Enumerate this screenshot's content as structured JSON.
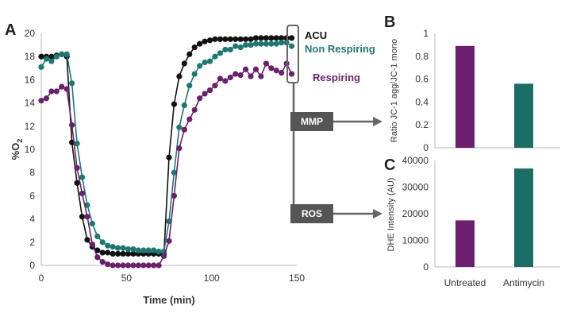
{
  "colors": {
    "acu": "#111111",
    "non_respiring": "#1a7a72",
    "respiring": "#6b1f6e",
    "untreated": "#6b1f6e",
    "antimycin": "#1a6e66",
    "flow_box": "#555555"
  },
  "flow": {
    "mmp": "MMP",
    "ros": "ROS"
  },
  "chart_data": [
    {
      "panel": "A",
      "type": "scatter",
      "xlabel": "Time (min)",
      "ylabel": "%O",
      "ylabel_sub": "2",
      "xlim": [
        0,
        150
      ],
      "ylim": [
        0,
        20
      ],
      "xticks": [
        0,
        50,
        100,
        150
      ],
      "yticks": [
        0,
        2,
        4,
        6,
        8,
        10,
        12,
        14,
        16,
        18,
        20
      ],
      "legend_position": "right",
      "series": [
        {
          "name": "ACU",
          "color_key": "acu",
          "x": [
            0,
            3,
            6,
            9,
            12,
            15,
            18,
            21,
            24,
            27,
            30,
            33,
            36,
            39,
            42,
            45,
            48,
            51,
            54,
            57,
            60,
            63,
            66,
            69,
            72,
            75,
            78,
            81,
            84,
            87,
            90,
            93,
            96,
            99,
            102,
            105,
            108,
            111,
            114,
            117,
            120,
            123,
            126,
            129,
            132,
            135,
            138,
            141,
            144,
            147
          ],
          "y": [
            18,
            18,
            18,
            18.1,
            18.2,
            18,
            10.6,
            7.1,
            4.2,
            2.2,
            1.6,
            1.3,
            1.1,
            1.1,
            1,
            1,
            1,
            1,
            1,
            1,
            1,
            1,
            1,
            1,
            1,
            9.3,
            13.9,
            16.3,
            17.4,
            18.2,
            18.8,
            19.1,
            19.3,
            19.4,
            19.5,
            19.5,
            19.5,
            19.5,
            19.5,
            19.5,
            19.5,
            19.5,
            19.6,
            19.6,
            19.6,
            19.6,
            19.6,
            19.6,
            19.6,
            19.6
          ]
        },
        {
          "name": "Non Respiring",
          "color_key": "non_respiring",
          "x": [
            0,
            3,
            6,
            9,
            12,
            15,
            18,
            21,
            24,
            27,
            30,
            33,
            36,
            39,
            42,
            45,
            48,
            51,
            54,
            57,
            60,
            63,
            66,
            69,
            72,
            75,
            78,
            81,
            84,
            87,
            90,
            93,
            96,
            99,
            102,
            105,
            108,
            111,
            114,
            117,
            120,
            123,
            126,
            129,
            132,
            135,
            138,
            141,
            144,
            147
          ],
          "y": [
            17.1,
            17.8,
            17.6,
            18,
            18.2,
            18.2,
            15.7,
            10.5,
            7.6,
            5.2,
            3.6,
            2.5,
            2,
            1.7,
            1.6,
            1.5,
            1.5,
            1.4,
            1.4,
            1.3,
            1.3,
            1.3,
            1.3,
            1.2,
            1.2,
            3.8,
            8,
            11.9,
            13.8,
            15.5,
            16.5,
            17.2,
            17.5,
            17.6,
            18,
            18.3,
            18.6,
            18.6,
            18.9,
            18.8,
            19,
            19,
            19.1,
            19.1,
            19.1,
            19.1,
            19.1,
            19.2,
            19.2,
            18.9
          ]
        },
        {
          "name": "Respiring",
          "color_key": "respiring",
          "x": [
            0,
            3,
            6,
            9,
            12,
            15,
            18,
            21,
            24,
            27,
            30,
            33,
            36,
            39,
            42,
            45,
            48,
            51,
            54,
            57,
            60,
            63,
            66,
            69,
            72,
            75,
            78,
            81,
            84,
            87,
            90,
            93,
            96,
            99,
            102,
            105,
            108,
            111,
            114,
            117,
            120,
            123,
            126,
            129,
            132,
            135,
            138,
            141,
            144,
            147
          ],
          "y": [
            14.2,
            14.4,
            15,
            15,
            15.4,
            15.2,
            12.1,
            8.4,
            6.2,
            4.2,
            1.8,
            0.7,
            0.3,
            0.1,
            0,
            0,
            0,
            0,
            0,
            0,
            0,
            0,
            0,
            0,
            0.8,
            2.1,
            6,
            10.1,
            11.7,
            12.6,
            13.4,
            14.4,
            14.8,
            15.1,
            15.5,
            16.1,
            15.9,
            16.2,
            16.5,
            16.4,
            16.9,
            16.3,
            16.9,
            16.3,
            17.4,
            17,
            16.8,
            16.6,
            17.4,
            16.5
          ]
        }
      ]
    },
    {
      "panel": "B",
      "type": "bar",
      "ylabel": "Ratio JC-1 agg/JC-1 mono",
      "ylim": [
        0,
        1
      ],
      "yticks": [
        "0",
        "0.2",
        "0.4",
        "0.6",
        "0.8",
        "1"
      ],
      "categories": [
        "Untreated",
        "Antimycin"
      ],
      "values": [
        0.89,
        0.56
      ]
    },
    {
      "panel": "C",
      "type": "bar",
      "ylabel": "DHE Intensity (AU)",
      "ylim": [
        0,
        40000
      ],
      "yticks": [
        "0",
        "10000",
        "20000",
        "30000",
        "40000"
      ],
      "categories": [
        "Untreated",
        "Antimycin"
      ],
      "values": [
        17500,
        37000
      ]
    }
  ]
}
